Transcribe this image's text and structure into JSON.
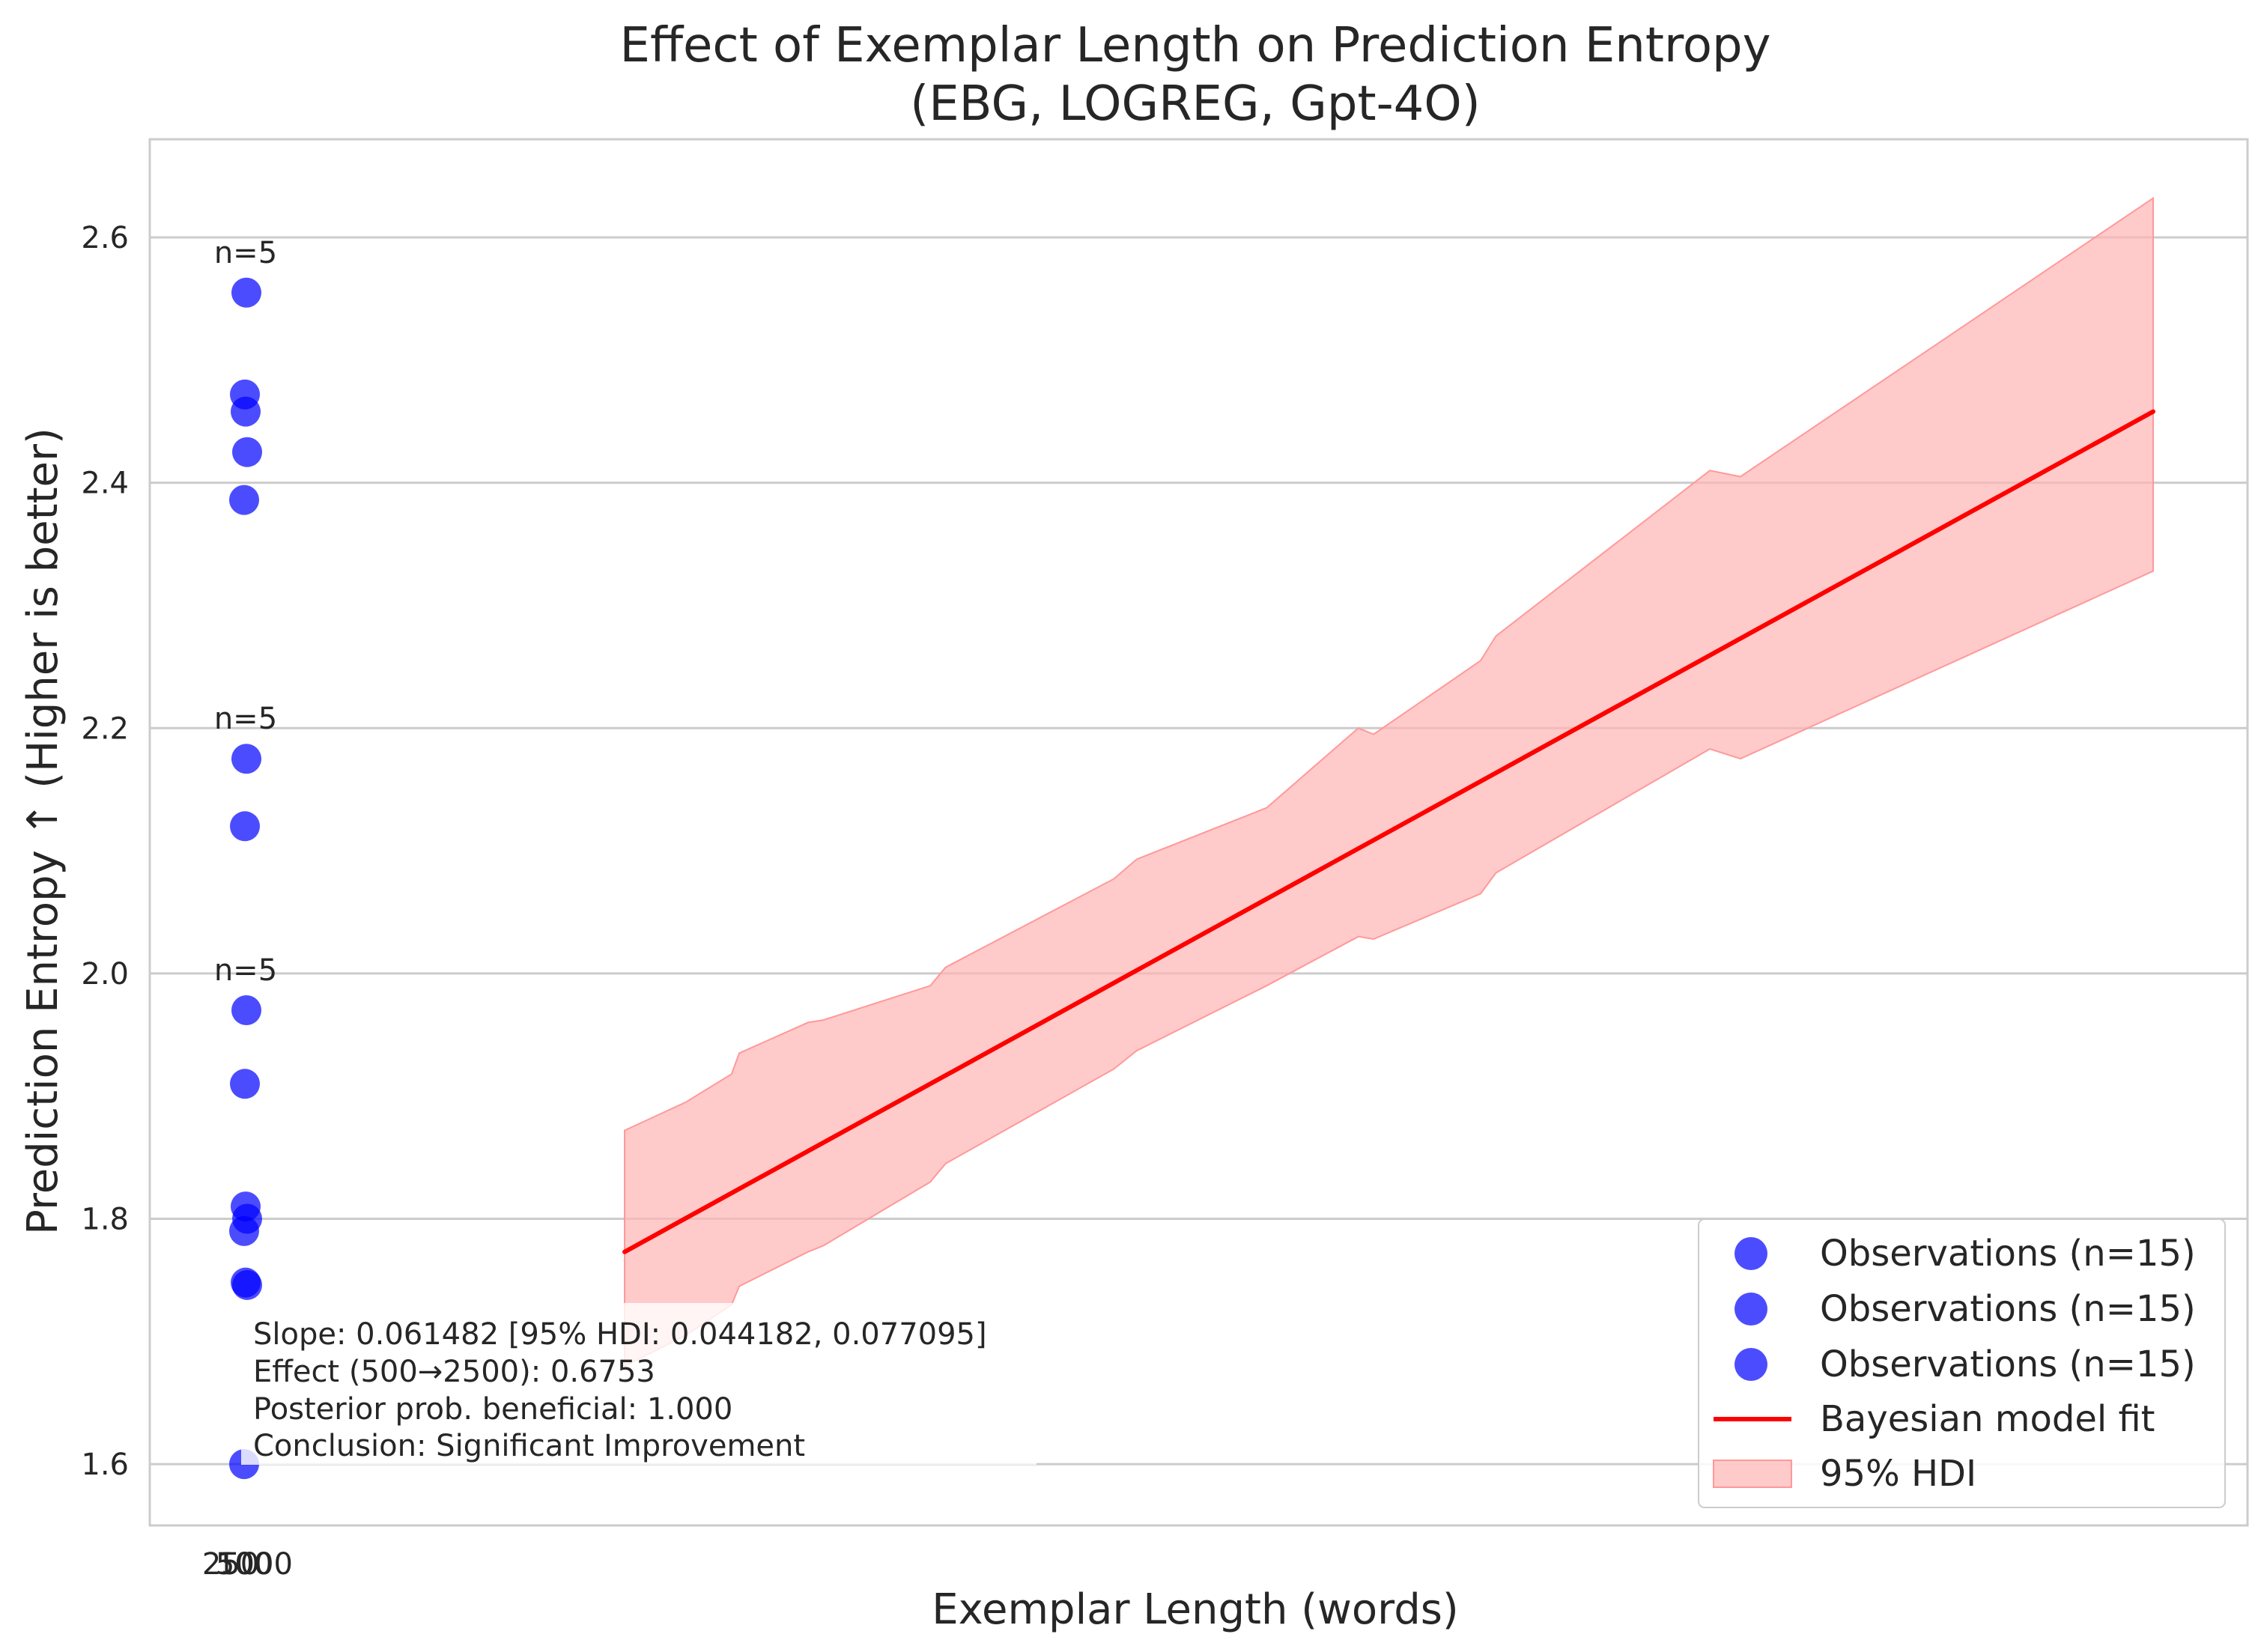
{
  "chart_data": {
    "type": "scatter",
    "title": "Effect of Exemplar Length on Prediction Entropy",
    "subtitle": "(EBG, LOGREG, Gpt-4O)",
    "xlabel": "Exemplar Length (words)",
    "ylabel": "Prediction Entropy ↑ (Higher is better)",
    "x_tick_labels": [
      "250",
      "500",
      "1000"
    ],
    "y_ticks": [
      1.6,
      1.8,
      2.0,
      2.2,
      2.4,
      2.6
    ],
    "y_tick_labels": [
      "1.6",
      "1.8",
      "2.0",
      "2.2",
      "2.4",
      "2.6"
    ],
    "ylim": [
      1.55,
      2.68
    ],
    "grid": "horizontal",
    "legend_placement": "lower-right",
    "colors": {
      "observations": "#0000ff",
      "fit": "#ff0000",
      "hdi": "#ffb3b3"
    },
    "observations": [
      {
        "name": "Observations (n=15)",
        "count_label": "n=5",
        "values": [
          1.97,
          1.91,
          1.81,
          1.8,
          1.79
        ]
      },
      {
        "name": "Observations (n=15)",
        "count_label": "n=5",
        "values": [
          2.175,
          2.12,
          1.748,
          1.746,
          1.6
        ]
      },
      {
        "name": "Observations (n=15)",
        "count_label": "n=5",
        "values": [
          2.555,
          2.472,
          2.458,
          2.425,
          2.386
        ]
      }
    ],
    "fit": {
      "name": "Bayesian model fit",
      "x_frac": [
        0.0,
        1.0
      ],
      "y": [
        1.773,
        2.458
      ]
    },
    "hdi": {
      "name": "95% HDI",
      "x_frac": [
        0.0,
        0.04,
        0.07,
        0.075,
        0.12,
        0.13,
        0.2,
        0.21,
        0.32,
        0.335,
        0.42,
        0.48,
        0.49,
        0.56,
        0.57,
        0.71,
        0.73,
        1.0
      ],
      "upper": [
        1.872,
        1.895,
        1.918,
        1.935,
        1.96,
        1.962,
        1.99,
        2.005,
        2.077,
        2.093,
        2.135,
        2.2,
        2.195,
        2.255,
        2.275,
        2.41,
        2.405,
        2.632
      ],
      "lower": [
        1.68,
        1.705,
        1.73,
        1.745,
        1.773,
        1.778,
        1.83,
        1.845,
        1.922,
        1.937,
        1.99,
        2.03,
        2.028,
        2.065,
        2.082,
        2.183,
        2.175,
        2.328
      ]
    },
    "annotation": [
      "Slope: 0.061482 [95% HDI: 0.044182, 0.077095]",
      "Effect (500→2500): 0.6753",
      "Posterior prob. beneficial: 1.000",
      "Conclusion: Significant Improvement"
    ],
    "legend": [
      "Observations (n=15)",
      "Observations (n=15)",
      "Observations (n=15)",
      "Bayesian model fit",
      "95% HDI"
    ]
  }
}
